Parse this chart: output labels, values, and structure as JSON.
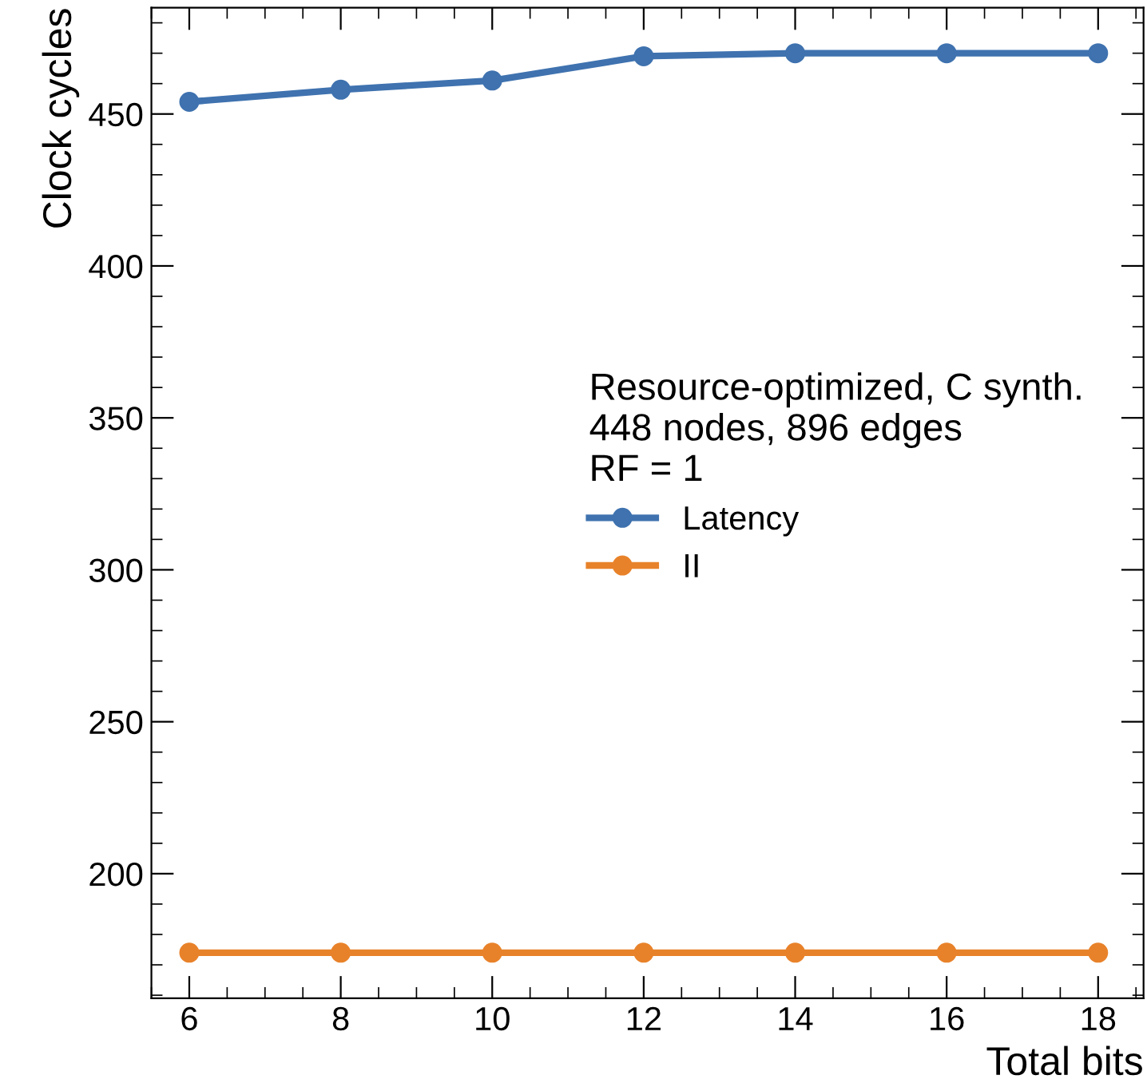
{
  "chart_data": {
    "type": "line",
    "xlabel": "Total bits",
    "ylabel": "Clock cycles",
    "legend_title": "Resource-optimized, C synth.\n448 nodes, 896 edges\nRF = 1",
    "x": [
      6,
      8,
      10,
      12,
      14,
      16,
      18
    ],
    "series": [
      {
        "name": "Latency",
        "color": "#3f72af",
        "values": [
          454,
          458,
          461,
          469,
          470,
          470,
          470
        ]
      },
      {
        "name": "II",
        "color": "#e8822a",
        "values": [
          174,
          174,
          174,
          174,
          174,
          174,
          174
        ]
      }
    ],
    "xlim": [
      5.5,
      18.6
    ],
    "ylim": [
      159,
      485
    ],
    "xticks": [
      6,
      8,
      10,
      12,
      14,
      16,
      18
    ],
    "yticks": [
      200,
      250,
      300,
      350,
      400,
      450
    ],
    "grid": false,
    "legend": "center right",
    "marker": "circle",
    "line_style": "solid"
  }
}
